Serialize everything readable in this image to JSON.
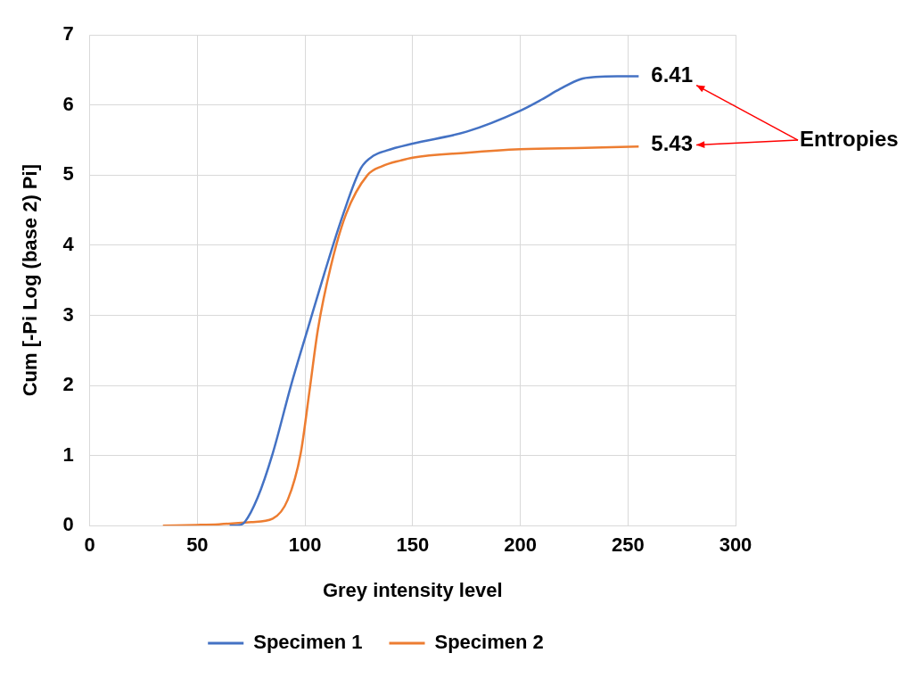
{
  "chart_data": {
    "type": "line",
    "xlabel": "Grey intensity level",
    "ylabel": "Cum [-Pi Log (base 2) Pi]",
    "xlim": [
      0,
      300
    ],
    "xticks": [
      0,
      50,
      100,
      150,
      200,
      250,
      300
    ],
    "ylim": [
      0,
      7
    ],
    "yticks": [
      0,
      1,
      2,
      3,
      4,
      5,
      6,
      7
    ],
    "grid": true,
    "legend": "bottom",
    "marker": "none",
    "line_style": "solid",
    "series": [
      {
        "name": "Specimen 1",
        "color": "#4472c4",
        "x": [
          65,
          70,
          72,
          78,
          85,
          93.5,
          101.6,
          109,
          117.7,
          126,
          132,
          137.7,
          150,
          175,
          200,
          210,
          218.5,
          228,
          235,
          245,
          255
        ],
        "values": [
          0,
          0.01,
          0.05,
          0.4,
          1.03,
          2.0,
          2.84,
          3.6,
          4.44,
          5.1,
          5.28,
          5.35,
          5.45,
          5.62,
          5.92,
          6.08,
          6.23,
          6.37,
          6.4,
          6.41,
          6.41
        ]
      },
      {
        "name": "Specimen 2",
        "color": "#ed7d31",
        "x": [
          34,
          50,
          60,
          75,
          85,
          92,
          98,
          102,
          106,
          112,
          119,
          129,
          136,
          144.5,
          150,
          175,
          200,
          230,
          255
        ],
        "values": [
          0,
          0.01,
          0.02,
          0.05,
          0.1,
          0.37,
          1.03,
          1.9,
          2.8,
          3.7,
          4.44,
          5.0,
          5.13,
          5.21,
          5.25,
          5.32,
          5.37,
          5.39,
          5.41
        ]
      }
    ],
    "annotations": [
      {
        "text": "6.41",
        "x": 255,
        "y": 6.41
      },
      {
        "text": "5.43",
        "x": 255,
        "y": 5.43
      },
      "Entropies"
    ]
  }
}
